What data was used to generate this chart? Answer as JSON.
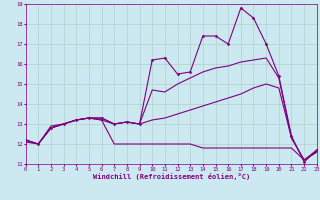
{
  "background_color": "#cce8f0",
  "line_color": "#800080",
  "grid_color": "#aaccbb",
  "xlabel": "Windchill (Refroidissement éolien,°C)",
  "xlabel_color": "#800080",
  "ylim": [
    11,
    19
  ],
  "xlim": [
    0,
    23
  ],
  "yticks": [
    11,
    12,
    13,
    14,
    15,
    16,
    17,
    18,
    19
  ],
  "xticks": [
    0,
    1,
    2,
    3,
    4,
    5,
    6,
    7,
    8,
    9,
    10,
    11,
    12,
    13,
    14,
    15,
    16,
    17,
    18,
    19,
    20,
    21,
    22,
    23
  ],
  "lines": [
    {
      "x": [
        0,
        1,
        2,
        3,
        4,
        5,
        6,
        7,
        8,
        9,
        10,
        11,
        12,
        13,
        14,
        15,
        16,
        17,
        18,
        19,
        20,
        21,
        22,
        23
      ],
      "y": [
        12.2,
        12.0,
        12.8,
        13.0,
        13.2,
        13.3,
        13.3,
        13.0,
        13.1,
        13.0,
        16.2,
        16.3,
        15.5,
        15.6,
        17.4,
        17.4,
        17.0,
        18.8,
        18.3,
        17.0,
        15.4,
        12.4,
        11.1,
        11.7
      ],
      "marker": "D",
      "markersize": 1.5,
      "linewidth": 0.8
    },
    {
      "x": [
        0,
        1,
        2,
        3,
        4,
        5,
        6,
        7,
        8,
        9,
        10,
        11,
        12,
        13,
        14,
        15,
        16,
        17,
        18,
        19,
        20,
        21,
        22,
        23
      ],
      "y": [
        12.2,
        12.0,
        12.8,
        13.0,
        13.2,
        13.3,
        13.3,
        13.0,
        13.1,
        13.0,
        14.7,
        14.6,
        15.0,
        15.3,
        15.6,
        15.8,
        15.9,
        16.1,
        16.2,
        16.3,
        15.3,
        12.3,
        11.2,
        11.6
      ],
      "marker": null,
      "markersize": 0,
      "linewidth": 0.8
    },
    {
      "x": [
        0,
        1,
        2,
        3,
        4,
        5,
        6,
        7,
        8,
        9,
        10,
        11,
        12,
        13,
        14,
        15,
        16,
        17,
        18,
        19,
        20,
        21,
        22,
        23
      ],
      "y": [
        12.1,
        12.0,
        12.9,
        13.0,
        13.2,
        13.3,
        13.2,
        13.0,
        13.1,
        13.0,
        13.2,
        13.3,
        13.5,
        13.7,
        13.9,
        14.1,
        14.3,
        14.5,
        14.8,
        15.0,
        14.8,
        12.3,
        11.2,
        11.6
      ],
      "marker": null,
      "markersize": 0,
      "linewidth": 0.8
    },
    {
      "x": [
        0,
        1,
        2,
        3,
        4,
        5,
        6,
        7,
        8,
        9,
        10,
        11,
        12,
        13,
        14,
        15,
        16,
        17,
        18,
        19,
        20,
        21,
        22,
        23
      ],
      "y": [
        12.2,
        12.0,
        12.8,
        13.0,
        13.2,
        13.3,
        13.2,
        12.0,
        12.0,
        12.0,
        12.0,
        12.0,
        12.0,
        12.0,
        11.8,
        11.8,
        11.8,
        11.8,
        11.8,
        11.8,
        11.8,
        11.8,
        11.2,
        11.7
      ],
      "marker": null,
      "markersize": 0,
      "linewidth": 0.8
    }
  ],
  "tick_labelsize": 4.0,
  "xlabel_fontsize": 5.0
}
